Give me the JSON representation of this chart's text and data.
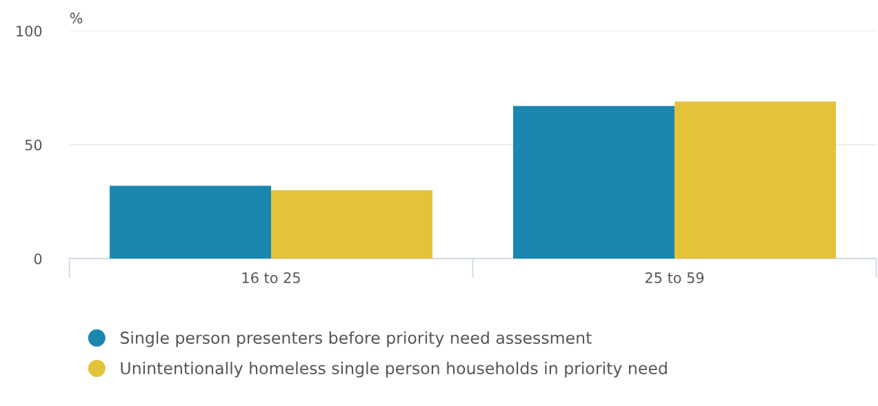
{
  "chart_data": {
    "type": "bar",
    "ylabel": "%",
    "categories": [
      "16 to 25",
      "25 to 59"
    ],
    "series": [
      {
        "name": "Single person presenters before priority need assessment",
        "color": "#1b87ae",
        "values": [
          32,
          67
        ]
      },
      {
        "name": "Unintentionally homeless single person households in priority need",
        "color": "#e3c33a",
        "values": [
          30,
          69
        ]
      }
    ],
    "ylim": [
      0,
      100
    ],
    "yticks": [
      0,
      50,
      100
    ],
    "grid": "y",
    "legend": "bottom left"
  }
}
